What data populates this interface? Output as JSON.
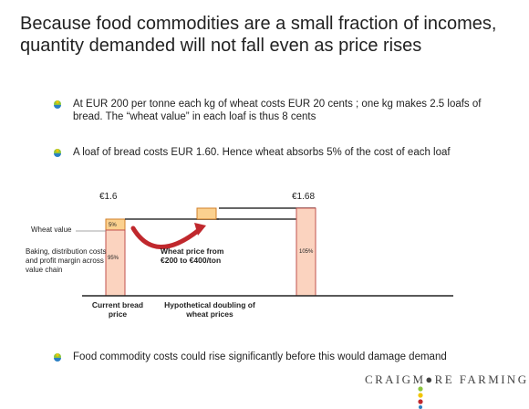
{
  "slide": {
    "title": "Because food commodities are a small fraction of incomes, quantity demanded will not fall even as price rises",
    "bullets": [
      "At  EUR 200 per tonne each kg of wheat costs EUR 20 cents ; one kg makes 2.5 loafs of bread. The “wheat value” in each loaf is thus 8 cents",
      "A loaf of bread costs EUR 1.60. Hence wheat absorbs 5% of the cost of each loaf",
      "Food commodity costs could rise significantly before this would damage demand"
    ],
    "brand": "CRAIGM●RE FARMING"
  },
  "diagram": {
    "price_before": "€1.6",
    "price_after": "€1.68",
    "wheat_label": "Wheat value",
    "baking_label": "Baking, distribution costs and profit margin across value chain",
    "wheat_pct": "5%",
    "baking_pct": "95%",
    "after_pct": "105%",
    "arrow_label": "Wheat price from €200 to €400/ton",
    "current_label": "Current bread price",
    "hypo_label": "Hypothetical doubling of wheat prices"
  },
  "colors": {
    "bar_fill": "#fbd3bf",
    "bar_border": "#c0504d",
    "wheat_fill": "#fbd18f",
    "wheat_border": "#d07f2a",
    "arrow": "#c0282d",
    "bullet_green": "#8dc63f",
    "bullet_blue": "#2a7fc4",
    "bullet_yellow": "#f2c500"
  },
  "icons": [
    "bullet-dot-icon",
    "brand-dots-icon",
    "curved-arrow-icon"
  ]
}
